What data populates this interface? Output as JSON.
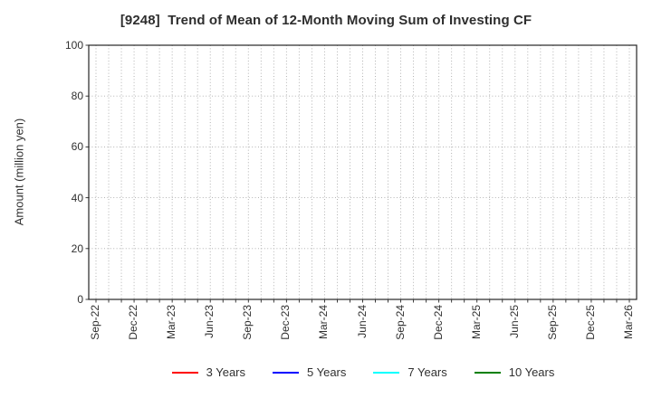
{
  "chart_data": {
    "type": "line",
    "title": "[9248]  Trend of Mean of 12-Month Moving Sum of Investing CF",
    "xlabel": "",
    "ylabel": "Amount (million yen)",
    "ylim": [
      0,
      100
    ],
    "yticks": [
      0,
      20,
      40,
      60,
      80,
      100
    ],
    "x_tick_labels": [
      "Sep-22",
      "Dec-22",
      "Mar-23",
      "Jun-23",
      "Sep-23",
      "Dec-23",
      "Mar-24",
      "Jun-24",
      "Sep-24",
      "Dec-24",
      "Mar-25",
      "Jun-25",
      "Sep-25",
      "Dec-25",
      "Mar-26"
    ],
    "x_minor_tick_interval_months": 1,
    "x_major_tick_interval_months": 3,
    "grid": "dotted",
    "legend_position": "bottom",
    "series": [
      {
        "name": "3 Years",
        "color": "#ff0000",
        "values": []
      },
      {
        "name": "5 Years",
        "color": "#0000ff",
        "values": []
      },
      {
        "name": "7 Years",
        "color": "#00ffff",
        "values": []
      },
      {
        "name": "10 Years",
        "color": "#008000",
        "values": []
      }
    ]
  },
  "colors": {
    "plot_border": "#262626",
    "grid_line": "#aaaaaa",
    "tick_mark": "#262626",
    "text": "#303030",
    "background": "#ffffff"
  }
}
